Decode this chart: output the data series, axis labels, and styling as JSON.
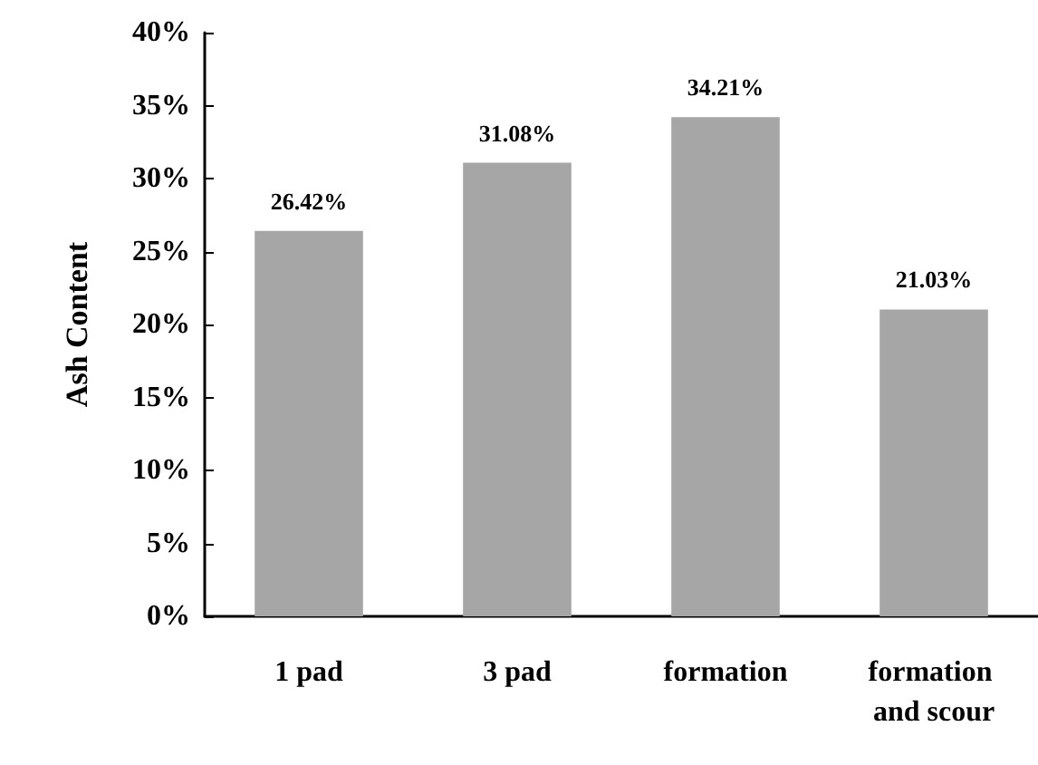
{
  "chart_data": {
    "type": "bar",
    "ylabel": "Ash Content",
    "categories": [
      "1 pad",
      "3 pad",
      "formation",
      "formation and scour"
    ],
    "values": [
      26.42,
      31.08,
      34.21,
      21.03
    ],
    "value_labels": [
      "26.42%",
      "31.08%",
      "34.21%",
      "21.03%"
    ],
    "color": "#a6a6a6",
    "ylim": [
      0,
      40
    ],
    "yticks": [
      {
        "value": 0,
        "label": "0%"
      },
      {
        "value": 5,
        "label": "5%"
      },
      {
        "value": 10,
        "label": "10%"
      },
      {
        "value": 15,
        "label": "15%"
      },
      {
        "value": 20,
        "label": "20%"
      },
      {
        "value": 25,
        "label": "25%"
      },
      {
        "value": 30,
        "label": "30%"
      },
      {
        "value": 35,
        "label": "35%"
      },
      {
        "value": 40,
        "label": "40%"
      }
    ],
    "grid": false
  }
}
